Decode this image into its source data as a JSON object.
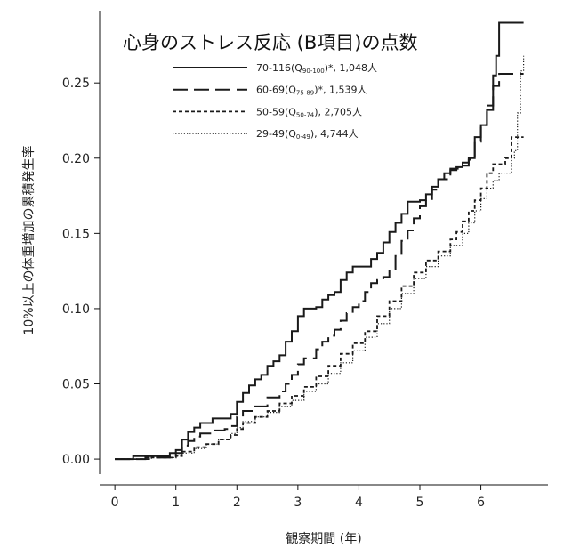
{
  "chart_data": {
    "type": "line",
    "title": "心身のストレス反応 (B項目)の点数",
    "xlabel": "観察期間 (年)",
    "ylabel": "10%以上の体重増加の累積発生率",
    "xlim": [
      -0.25,
      7.1
    ],
    "ylim": [
      -0.01,
      0.298
    ],
    "x_ticks": [
      0,
      1,
      2,
      3,
      4,
      5,
      6
    ],
    "x_tick_labels": [
      "0",
      "1",
      "2",
      "3",
      "4",
      "5",
      "6"
    ],
    "y_ticks": [
      0.0,
      0.05,
      0.1,
      0.15,
      0.2,
      0.25
    ],
    "y_tick_labels": [
      "0.00",
      "0.05",
      "0.10",
      "0.15",
      "0.20",
      "0.25"
    ],
    "legend_position": "top-center",
    "series": [
      {
        "name": "70-116(Q90-100)*, 1,048人",
        "label_main": "70-116(Q",
        "label_sub": "90-100",
        "label_tail": ")*,  1,048人",
        "style": "solid",
        "points": [
          [
            0,
            0
          ],
          [
            0.3,
            0
          ],
          [
            0.3,
            0.002
          ],
          [
            0.8,
            0.002
          ],
          [
            0.9,
            0.004
          ],
          [
            1.0,
            0.006
          ],
          [
            1.1,
            0.013
          ],
          [
            1.2,
            0.018
          ],
          [
            1.3,
            0.021
          ],
          [
            1.4,
            0.024
          ],
          [
            1.6,
            0.027
          ],
          [
            1.8,
            0.027
          ],
          [
            1.9,
            0.03
          ],
          [
            2.0,
            0.038
          ],
          [
            2.1,
            0.044
          ],
          [
            2.2,
            0.049
          ],
          [
            2.3,
            0.053
          ],
          [
            2.4,
            0.056
          ],
          [
            2.5,
            0.062
          ],
          [
            2.6,
            0.065
          ],
          [
            2.7,
            0.069
          ],
          [
            2.8,
            0.078
          ],
          [
            2.9,
            0.085
          ],
          [
            3.0,
            0.095
          ],
          [
            3.1,
            0.1
          ],
          [
            3.3,
            0.101
          ],
          [
            3.4,
            0.106
          ],
          [
            3.5,
            0.109
          ],
          [
            3.6,
            0.111
          ],
          [
            3.7,
            0.119
          ],
          [
            3.8,
            0.124
          ],
          [
            3.9,
            0.128
          ],
          [
            4.1,
            0.128
          ],
          [
            4.2,
            0.133
          ],
          [
            4.3,
            0.137
          ],
          [
            4.4,
            0.144
          ],
          [
            4.5,
            0.151
          ],
          [
            4.6,
            0.157
          ],
          [
            4.7,
            0.163
          ],
          [
            4.8,
            0.171
          ],
          [
            5.0,
            0.172
          ],
          [
            5.1,
            0.176
          ],
          [
            5.2,
            0.181
          ],
          [
            5.3,
            0.186
          ],
          [
            5.4,
            0.19
          ],
          [
            5.5,
            0.192
          ],
          [
            5.6,
            0.194
          ],
          [
            5.7,
            0.195
          ],
          [
            5.8,
            0.2
          ],
          [
            5.9,
            0.214
          ],
          [
            6.0,
            0.222
          ],
          [
            6.1,
            0.232
          ],
          [
            6.2,
            0.255
          ],
          [
            6.25,
            0.268
          ],
          [
            6.3,
            0.29
          ],
          [
            6.7,
            0.29
          ]
        ]
      },
      {
        "name": "60-69(Q75-89)*, 1,539人",
        "label_main": "60-69(Q",
        "label_sub": "75-89",
        "label_tail": ")*,   1,539人",
        "style": "longdash",
        "points": [
          [
            0,
            0
          ],
          [
            0.5,
            0
          ],
          [
            0.5,
            0.001
          ],
          [
            0.9,
            0.002
          ],
          [
            1.0,
            0.004
          ],
          [
            1.1,
            0.009
          ],
          [
            1.2,
            0.012
          ],
          [
            1.3,
            0.015
          ],
          [
            1.4,
            0.017
          ],
          [
            1.6,
            0.019
          ],
          [
            1.8,
            0.02
          ],
          [
            1.9,
            0.022
          ],
          [
            2.0,
            0.028
          ],
          [
            2.1,
            0.032
          ],
          [
            2.3,
            0.035
          ],
          [
            2.5,
            0.041
          ],
          [
            2.7,
            0.045
          ],
          [
            2.8,
            0.05
          ],
          [
            2.9,
            0.056
          ],
          [
            3.0,
            0.063
          ],
          [
            3.1,
            0.067
          ],
          [
            3.3,
            0.073
          ],
          [
            3.4,
            0.078
          ],
          [
            3.5,
            0.082
          ],
          [
            3.6,
            0.086
          ],
          [
            3.7,
            0.092
          ],
          [
            3.8,
            0.097
          ],
          [
            3.9,
            0.101
          ],
          [
            4.0,
            0.105
          ],
          [
            4.1,
            0.111
          ],
          [
            4.2,
            0.117
          ],
          [
            4.3,
            0.119
          ],
          [
            4.4,
            0.121
          ],
          [
            4.5,
            0.126
          ],
          [
            4.6,
            0.135
          ],
          [
            4.7,
            0.145
          ],
          [
            4.8,
            0.152
          ],
          [
            4.9,
            0.16
          ],
          [
            5.0,
            0.168
          ],
          [
            5.1,
            0.172
          ],
          [
            5.2,
            0.179
          ],
          [
            5.3,
            0.186
          ],
          [
            5.5,
            0.193
          ],
          [
            5.7,
            0.197
          ],
          [
            5.8,
            0.199
          ],
          [
            5.9,
            0.211
          ],
          [
            6.0,
            0.222
          ],
          [
            6.1,
            0.235
          ],
          [
            6.2,
            0.248
          ],
          [
            6.3,
            0.256
          ],
          [
            6.7,
            0.256
          ]
        ]
      },
      {
        "name": "50-59(Q50-74), 2,705人",
        "label_main": "50-59(Q",
        "label_sub": "50-74",
        "label_tail": "),     2,705人",
        "style": "shortdash",
        "points": [
          [
            0,
            0
          ],
          [
            0.6,
            0
          ],
          [
            0.6,
            0.001
          ],
          [
            1.0,
            0.002
          ],
          [
            1.1,
            0.005
          ],
          [
            1.3,
            0.008
          ],
          [
            1.5,
            0.01
          ],
          [
            1.7,
            0.013
          ],
          [
            1.9,
            0.016
          ],
          [
            2.0,
            0.02
          ],
          [
            2.1,
            0.024
          ],
          [
            2.3,
            0.028
          ],
          [
            2.5,
            0.032
          ],
          [
            2.7,
            0.037
          ],
          [
            2.9,
            0.042
          ],
          [
            3.1,
            0.048
          ],
          [
            3.3,
            0.055
          ],
          [
            3.5,
            0.062
          ],
          [
            3.7,
            0.07
          ],
          [
            3.9,
            0.077
          ],
          [
            4.1,
            0.085
          ],
          [
            4.3,
            0.095
          ],
          [
            4.5,
            0.105
          ],
          [
            4.7,
            0.115
          ],
          [
            4.9,
            0.124
          ],
          [
            5.1,
            0.132
          ],
          [
            5.3,
            0.138
          ],
          [
            5.5,
            0.146
          ],
          [
            5.6,
            0.151
          ],
          [
            5.7,
            0.158
          ],
          [
            5.8,
            0.165
          ],
          [
            5.9,
            0.172
          ],
          [
            6.0,
            0.18
          ],
          [
            6.1,
            0.19
          ],
          [
            6.2,
            0.196
          ],
          [
            6.4,
            0.2
          ],
          [
            6.5,
            0.214
          ],
          [
            6.7,
            0.214
          ]
        ]
      },
      {
        "name": "29-49(Q0-49), 4,744人",
        "label_main": "29-49(Q",
        "label_sub": "0-49",
        "label_tail": "),     4,744人",
        "style": "dotted",
        "points": [
          [
            0,
            0
          ],
          [
            0.6,
            0
          ],
          [
            0.6,
            0.001
          ],
          [
            1.0,
            0.002
          ],
          [
            1.1,
            0.004
          ],
          [
            1.3,
            0.007
          ],
          [
            1.5,
            0.01
          ],
          [
            1.7,
            0.013
          ],
          [
            1.9,
            0.017
          ],
          [
            2.0,
            0.021
          ],
          [
            2.1,
            0.025
          ],
          [
            2.3,
            0.028
          ],
          [
            2.5,
            0.031
          ],
          [
            2.7,
            0.035
          ],
          [
            2.9,
            0.039
          ],
          [
            3.1,
            0.045
          ],
          [
            3.3,
            0.05
          ],
          [
            3.5,
            0.057
          ],
          [
            3.7,
            0.064
          ],
          [
            3.9,
            0.072
          ],
          [
            4.1,
            0.081
          ],
          [
            4.3,
            0.09
          ],
          [
            4.5,
            0.1
          ],
          [
            4.7,
            0.11
          ],
          [
            4.9,
            0.12
          ],
          [
            5.1,
            0.128
          ],
          [
            5.3,
            0.135
          ],
          [
            5.5,
            0.142
          ],
          [
            5.7,
            0.15
          ],
          [
            5.8,
            0.157
          ],
          [
            5.9,
            0.165
          ],
          [
            6.0,
            0.173
          ],
          [
            6.1,
            0.18
          ],
          [
            6.2,
            0.185
          ],
          [
            6.3,
            0.19
          ],
          [
            6.5,
            0.2
          ],
          [
            6.55,
            0.205
          ],
          [
            6.6,
            0.23
          ],
          [
            6.65,
            0.258
          ],
          [
            6.7,
            0.268
          ]
        ]
      }
    ]
  }
}
